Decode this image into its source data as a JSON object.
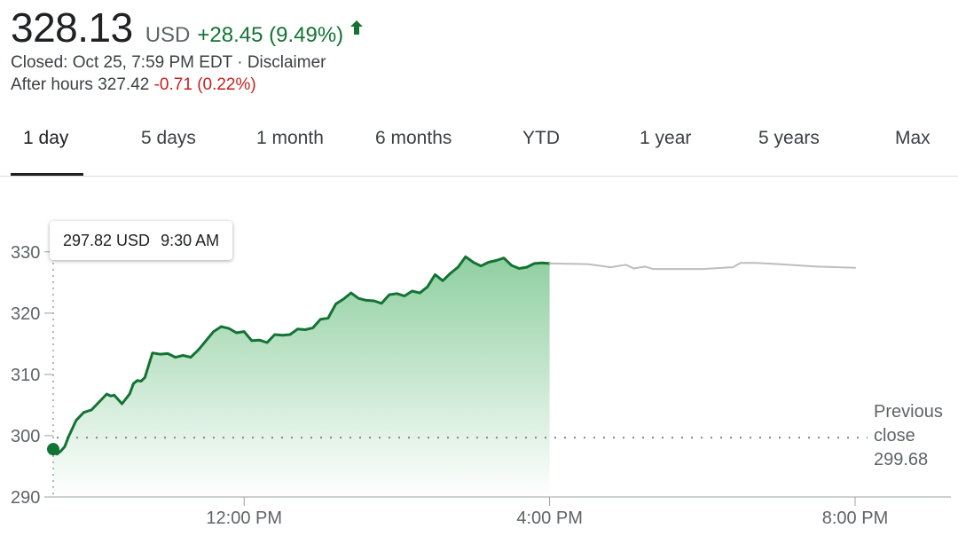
{
  "quote": {
    "price": "328.13",
    "currency": "USD",
    "change": "+28.45 (9.49%)",
    "closed_text": "Closed: Oct 25, 7:59 PM EDT · ",
    "disclaimer": "Disclaimer",
    "after_hours_label": "After hours 327.42 ",
    "after_hours_change": "-0.71 (0.22%)",
    "colors": {
      "up": "#137333",
      "down": "#c5221f"
    }
  },
  "tabs": [
    "1 day",
    "5 days",
    "1 month",
    "6 months",
    "YTD",
    "1 year",
    "5 years",
    "Max"
  ],
  "active_tab": "1 day",
  "tooltip": {
    "price": "297.82 USD",
    "time": "9:30 AM"
  },
  "previous_close": {
    "line1": "Previous",
    "line2": "close",
    "value_text": "299.68"
  },
  "chart_data": {
    "type": "line",
    "ylim": [
      290,
      332
    ],
    "yticks": [
      290,
      300,
      310,
      320,
      330
    ],
    "ytick_labels": [
      "290",
      "300",
      "310",
      "320",
      "330"
    ],
    "xticks": [
      "12:00 PM",
      "4:00 PM",
      "8:00 PM"
    ],
    "x_unit": "hours after 9:30 AM",
    "xlim": [
      0,
      10.5
    ],
    "xtick_positions": [
      2.5,
      6.5,
      10.5
    ],
    "previous_close": 299.68,
    "series": [
      {
        "session": "regular",
        "color": "#137333",
        "fill": true,
        "x": [
          0,
          0.05,
          0.1,
          0.15,
          0.2,
          0.3,
          0.4,
          0.5,
          0.6,
          0.7,
          0.75,
          0.8,
          0.9,
          1.0,
          1.05,
          1.1,
          1.15,
          1.2,
          1.3,
          1.4,
          1.5,
          1.6,
          1.7,
          1.8,
          1.9,
          2.0,
          2.1,
          2.2,
          2.3,
          2.4,
          2.5,
          2.6,
          2.7,
          2.8,
          2.9,
          3.0,
          3.1,
          3.2,
          3.3,
          3.4,
          3.5,
          3.6,
          3.7,
          3.8,
          3.9,
          4.0,
          4.1,
          4.2,
          4.3,
          4.4,
          4.5,
          4.6,
          4.7,
          4.8,
          4.9,
          5.0,
          5.1,
          5.2,
          5.3,
          5.4,
          5.5,
          5.6,
          5.7,
          5.8,
          5.9,
          6.0,
          6.1,
          6.2,
          6.3,
          6.4,
          6.5
        ],
        "y": [
          297.8,
          297.0,
          297.5,
          298.2,
          299.8,
          302.5,
          303.8,
          304.2,
          305.5,
          306.8,
          306.5,
          306.6,
          305.2,
          306.8,
          308.5,
          309.0,
          308.9,
          309.5,
          313.5,
          313.3,
          313.4,
          312.8,
          313.1,
          312.8,
          314.0,
          315.5,
          317.0,
          317.8,
          317.5,
          316.8,
          317.0,
          315.5,
          315.6,
          315.2,
          316.5,
          316.4,
          316.5,
          317.4,
          317.3,
          317.6,
          319.0,
          319.2,
          321.5,
          322.3,
          323.3,
          322.4,
          322.1,
          322.0,
          321.6,
          323.0,
          323.2,
          322.8,
          323.6,
          323.3,
          324.3,
          326.3,
          325.3,
          326.5,
          327.5,
          329.2,
          328.3,
          327.7,
          328.3,
          328.6,
          329.0,
          327.8,
          327.3,
          327.5,
          328.1,
          328.2,
          328.1
        ]
      },
      {
        "session": "after_hours",
        "color": "#bdbdbd",
        "fill": false,
        "x": [
          6.5,
          7.0,
          7.3,
          7.5,
          7.6,
          7.75,
          7.85,
          8.0,
          8.5,
          8.9,
          9.0,
          9.2,
          9.5,
          10.0,
          10.5
        ],
        "y": [
          328.1,
          328.0,
          327.5,
          327.9,
          327.3,
          327.6,
          327.2,
          327.2,
          327.2,
          327.5,
          328.2,
          328.2,
          328.0,
          327.6,
          327.4
        ]
      }
    ]
  }
}
